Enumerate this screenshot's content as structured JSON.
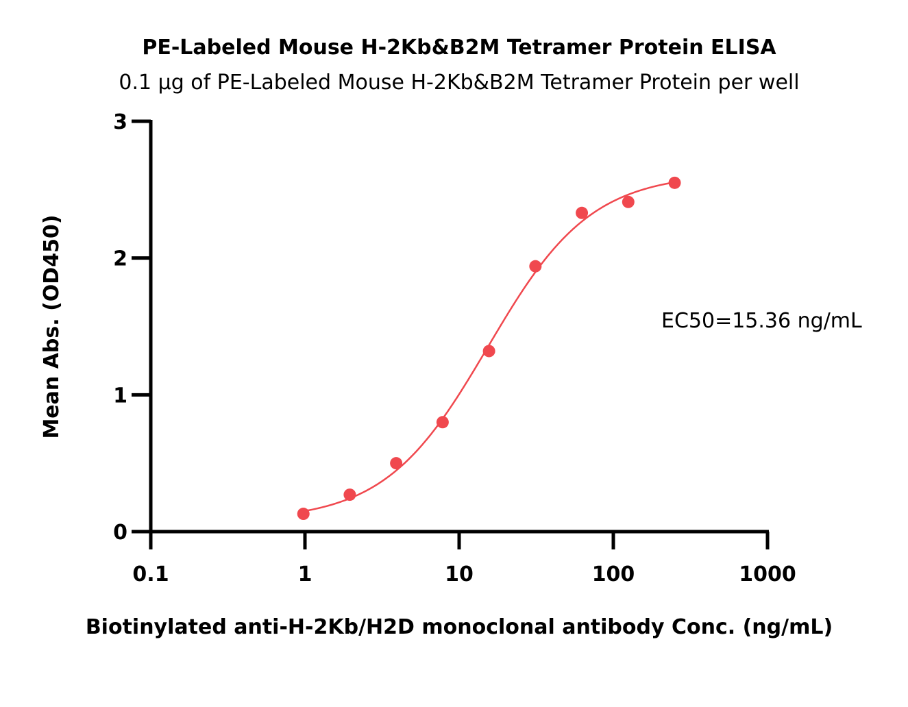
{
  "chart_data": {
    "type": "scatter",
    "title": "PE-Labeled Mouse H-2Kb&B2M Tetramer Protein ELISA",
    "subtitle": "0.1 μg of PE-Labeled Mouse H-2Kb&B2M Tetramer Protein per well",
    "xlabel": "Biotinylated anti-H-2Kb/H2D monoclonal antibody Conc. (ng/mL)",
    "ylabel": "Mean Abs. (OD450)",
    "xscale": "log",
    "xlim": [
      0.1,
      1000
    ],
    "ylim": [
      0,
      3
    ],
    "xticks": [
      0.1,
      1,
      10,
      100,
      1000
    ],
    "xtick_labels": [
      "0.1",
      "1",
      "10",
      "100",
      "1000"
    ],
    "yticks": [
      0,
      1,
      2,
      3
    ],
    "ytick_labels": [
      "0",
      "1",
      "2",
      "3"
    ],
    "grid": false,
    "annotation": "EC50=15.36 ng/mL",
    "series": [
      {
        "x": [
          0.977,
          1.953,
          3.906,
          7.813,
          15.625,
          31.25,
          62.5,
          125,
          250
        ],
        "y": [
          0.13,
          0.27,
          0.5,
          0.8,
          1.32,
          1.94,
          2.33,
          2.41,
          2.55
        ],
        "color": "#f0484e",
        "fit": {
          "model": "4PL",
          "bottom": 0.08,
          "top": 2.62,
          "ec50": 15.36,
          "hill": 1.3,
          "x_range": [
            0.977,
            250
          ]
        }
      }
    ]
  }
}
